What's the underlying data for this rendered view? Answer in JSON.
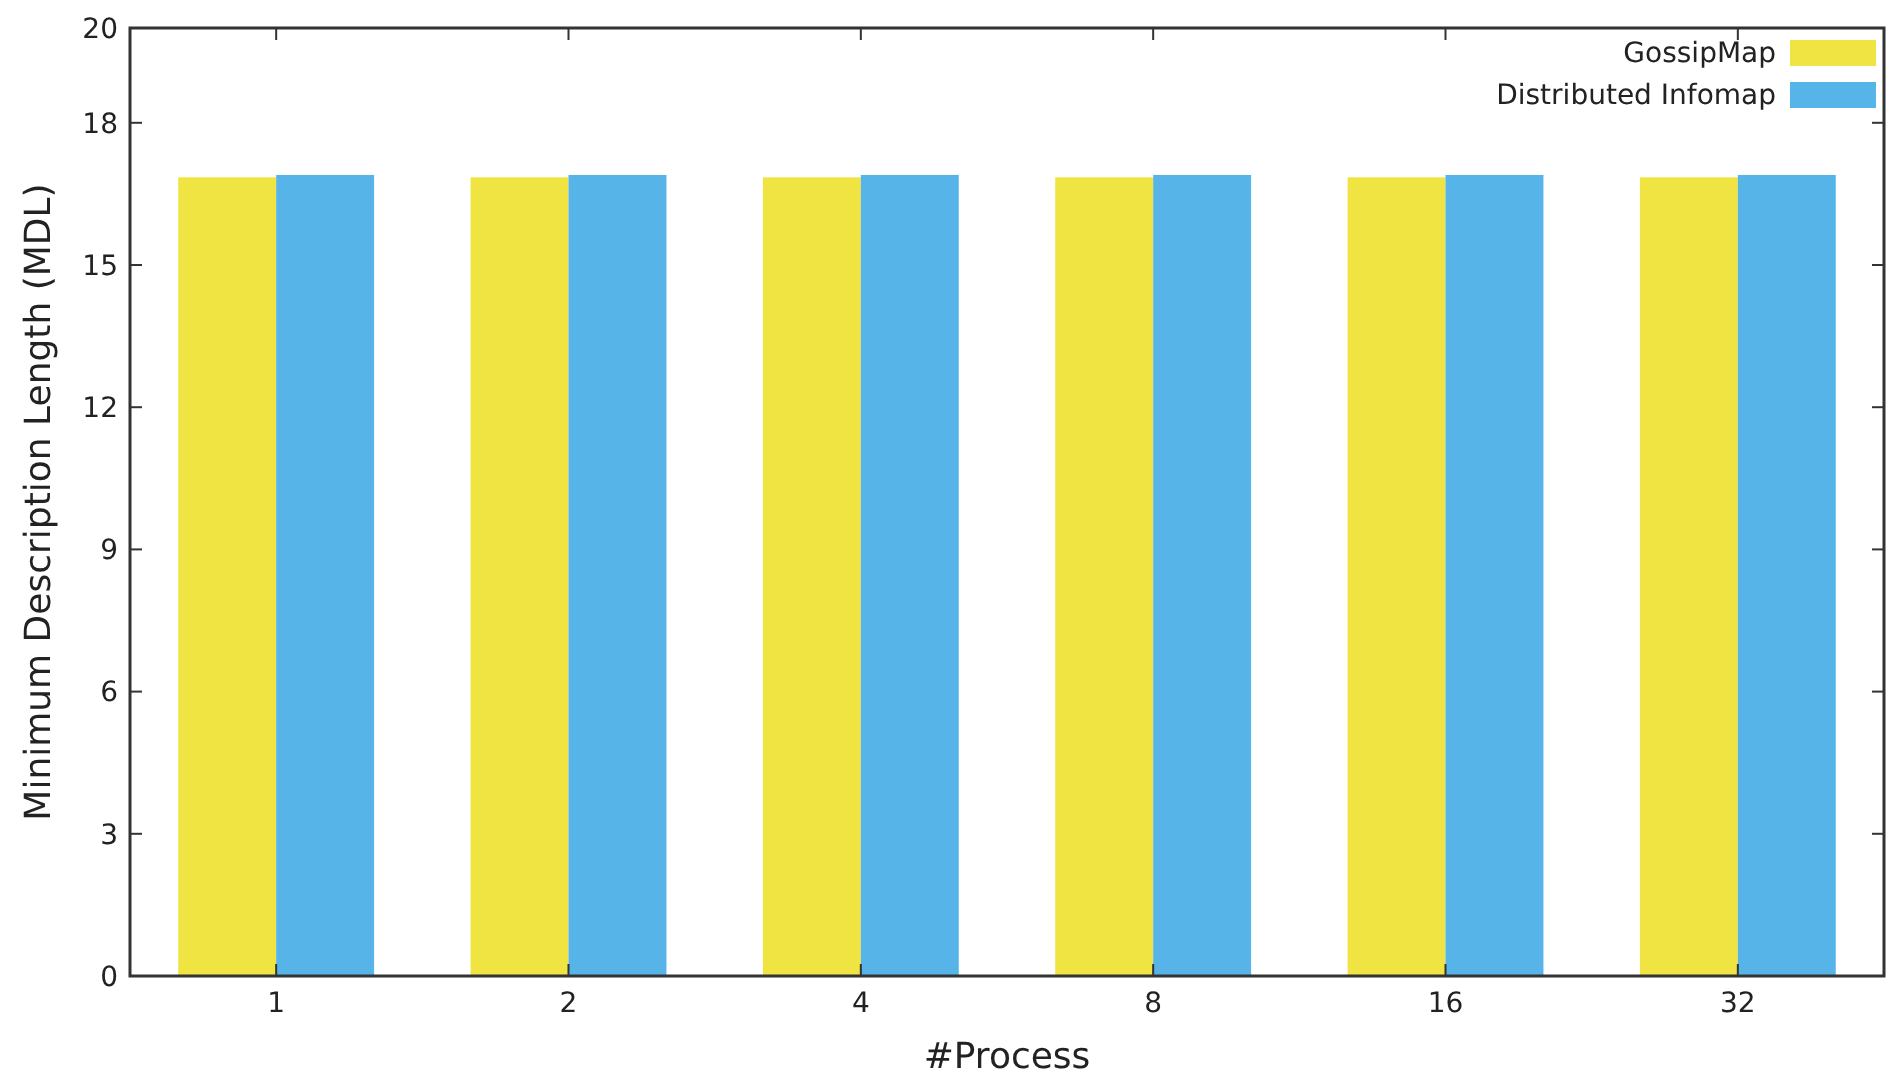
{
  "chart_data": {
    "type": "bar",
    "xlabel": "#Process",
    "ylabel": "Minimum Description Length (MDL)",
    "categories": [
      "1",
      "2",
      "4",
      "8",
      "16",
      "32"
    ],
    "series": [
      {
        "name": "GossipMap",
        "color": "#f0e442",
        "values": [
          16.85,
          16.85,
          16.85,
          16.85,
          16.85,
          16.85
        ]
      },
      {
        "name": "Distributed Infomap",
        "color": "#56b4e9",
        "values": [
          16.9,
          16.9,
          16.9,
          16.9,
          16.9,
          16.9
        ]
      }
    ],
    "ylim": [
      0,
      20
    ],
    "yticks": [
      0,
      3,
      6,
      9,
      12,
      15,
      18,
      20
    ],
    "grid": false,
    "legend": "top right"
  }
}
